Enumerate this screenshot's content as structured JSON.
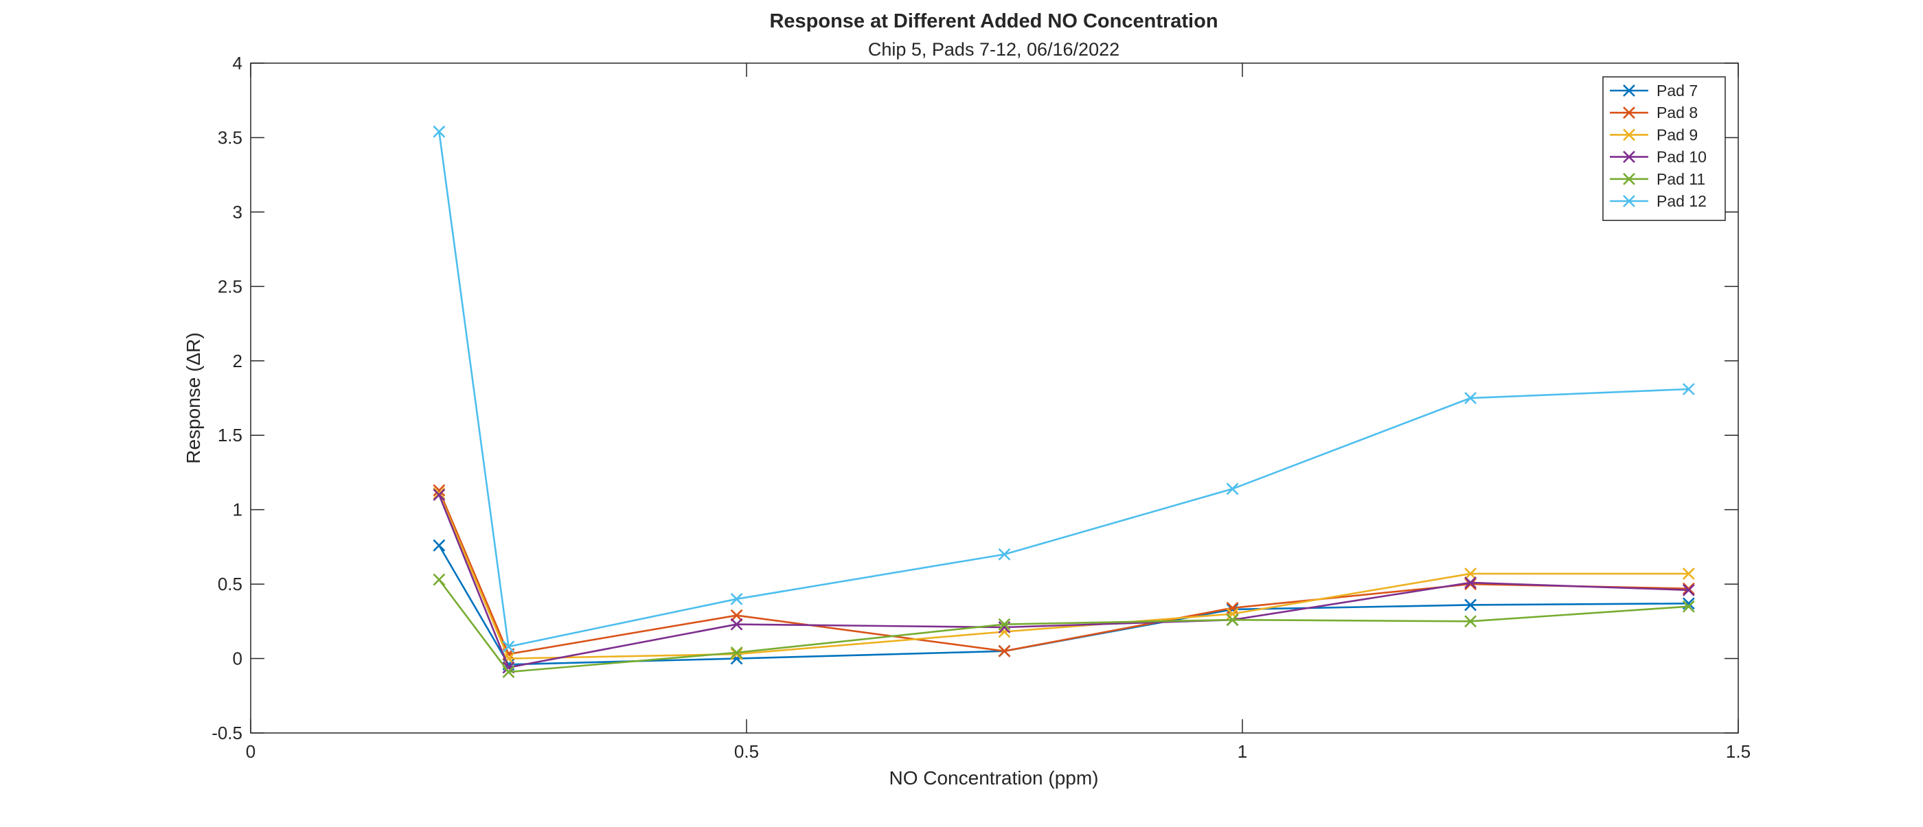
{
  "chart_data": {
    "type": "line",
    "title": "Response at Different Added NO Concentration",
    "subtitle": "Chip 5, Pads 7-12, 06/16/2022",
    "xlabel": "NO Concentration (ppm)",
    "ylabel": "Response (ΔR)",
    "xlim": [
      0,
      1.5
    ],
    "ylim": [
      -0.5,
      4
    ],
    "x_ticks": [
      0,
      0.5,
      1,
      1.5
    ],
    "x_tick_labels": [
      "0",
      "0.5",
      "1",
      "1.5"
    ],
    "y_ticks": [
      -0.5,
      0,
      0.5,
      1,
      1.5,
      2,
      2.5,
      3,
      3.5,
      4
    ],
    "y_tick_labels": [
      "-0.5",
      "0",
      "0.5",
      "1",
      "1.5",
      "2",
      "2.5",
      "3",
      "3.5",
      "4"
    ],
    "grid": false,
    "legend": "top-right",
    "marker": "x",
    "x": [
      0.19,
      0.26,
      0.49,
      0.76,
      0.99,
      1.23,
      1.45
    ],
    "series": [
      {
        "name": "Pad 7",
        "color": "#0072BD",
        "values": [
          0.76,
          -0.04,
          0.0,
          0.05,
          0.33,
          0.36,
          0.37
        ]
      },
      {
        "name": "Pad 8",
        "color": "#D95319",
        "values": [
          1.13,
          0.03,
          0.29,
          0.05,
          0.34,
          0.5,
          0.47
        ]
      },
      {
        "name": "Pad 9",
        "color": "#EDB120",
        "values": [
          1.11,
          0.0,
          0.03,
          0.18,
          0.3,
          0.57,
          0.57
        ]
      },
      {
        "name": "Pad 10",
        "color": "#7E2F8E",
        "values": [
          1.1,
          -0.06,
          0.23,
          0.21,
          0.26,
          0.51,
          0.46
        ]
      },
      {
        "name": "Pad 11",
        "color": "#77AC30",
        "values": [
          0.53,
          -0.09,
          0.04,
          0.23,
          0.26,
          0.25,
          0.35
        ]
      },
      {
        "name": "Pad 12",
        "color": "#4DBEEE",
        "values": [
          3.54,
          0.08,
          0.4,
          0.7,
          1.14,
          1.75,
          1.81
        ]
      }
    ]
  }
}
